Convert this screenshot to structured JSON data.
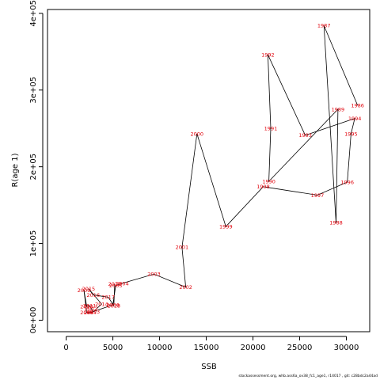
{
  "chart_data": {
    "type": "scatter",
    "title": "",
    "xlabel": "SSB",
    "ylabel": "R(age 1)",
    "xlim": [
      -2000,
      32500
    ],
    "ylim": [
      -15000,
      405000
    ],
    "x_ticks": [
      0,
      5000,
      10000,
      15000,
      20000,
      25000,
      30000
    ],
    "x_tick_labels": [
      "0",
      "5000",
      "10000",
      "15000",
      "20000",
      "25000",
      "30000"
    ],
    "y_ticks": [
      0,
      100000,
      200000,
      300000,
      400000
    ],
    "y_tick_labels": [
      "0e+00",
      "1e+05",
      "2e+05",
      "3e+05",
      "4e+05"
    ],
    "series": [
      {
        "connected": true,
        "label_color": "#e0000a",
        "points": [
          {
            "year": "1986",
            "x": 31200,
            "y": 280000
          },
          {
            "year": "1987",
            "x": 27600,
            "y": 384000
          },
          {
            "year": "1988",
            "x": 28900,
            "y": 127000
          },
          {
            "year": "1989",
            "x": 29100,
            "y": 275000
          },
          {
            "year": "1990",
            "x": 21700,
            "y": 181000
          },
          {
            "year": "1991",
            "x": 21900,
            "y": 250000
          },
          {
            "year": "1992",
            "x": 21600,
            "y": 346000
          },
          {
            "year": "1993",
            "x": 25600,
            "y": 241000
          },
          {
            "year": "1994",
            "x": 30900,
            "y": 263000
          },
          {
            "year": "1995",
            "x": 30500,
            "y": 243000
          },
          {
            "year": "1996",
            "x": 30100,
            "y": 180000
          },
          {
            "year": "1997",
            "x": 26900,
            "y": 163000
          },
          {
            "year": "1998",
            "x": 21100,
            "y": 174000
          },
          {
            "year": "1999",
            "x": 17100,
            "y": 122000
          },
          {
            "year": "2000",
            "x": 14000,
            "y": 243000
          },
          {
            "year": "2001",
            "x": 12400,
            "y": 95000
          },
          {
            "year": "2002",
            "x": 12800,
            "y": 43000
          },
          {
            "year": "2003",
            "x": 9400,
            "y": 60000
          },
          {
            "year": "2004",
            "x": 6000,
            "y": 48000
          },
          {
            "year": "2005",
            "x": 5300,
            "y": 45000
          },
          {
            "year": "2006",
            "x": 5000,
            "y": 20000
          },
          {
            "year": "2007",
            "x": 2600,
            "y": 10000
          },
          {
            "year": "2008",
            "x": 2200,
            "y": 10000
          },
          {
            "year": "2009",
            "x": 1900,
            "y": 39000
          },
          {
            "year": "2010",
            "x": 2200,
            "y": 18000
          },
          {
            "year": "2011",
            "x": 2500,
            "y": 19000
          },
          {
            "year": "2012",
            "x": 2700,
            "y": 15000
          },
          {
            "year": "2013",
            "x": 2900,
            "y": 11000
          },
          {
            "year": "2014",
            "x": 3800,
            "y": 21000
          },
          {
            "year": "2015",
            "x": 2400,
            "y": 41000
          },
          {
            "year": "2016",
            "x": 2900,
            "y": 33000
          },
          {
            "year": "2017",
            "x": 4500,
            "y": 30000
          },
          {
            "year": "2018",
            "x": 5100,
            "y": 19000
          },
          {
            "year": "2019",
            "x": 5200,
            "y": 47000
          }
        ]
      }
    ],
    "grid": false,
    "legend": "none"
  },
  "footer": "stockassessment.org, whb.ass6a_ov38_fc1_age1, r14017 , git: c28bdc2a44ad"
}
